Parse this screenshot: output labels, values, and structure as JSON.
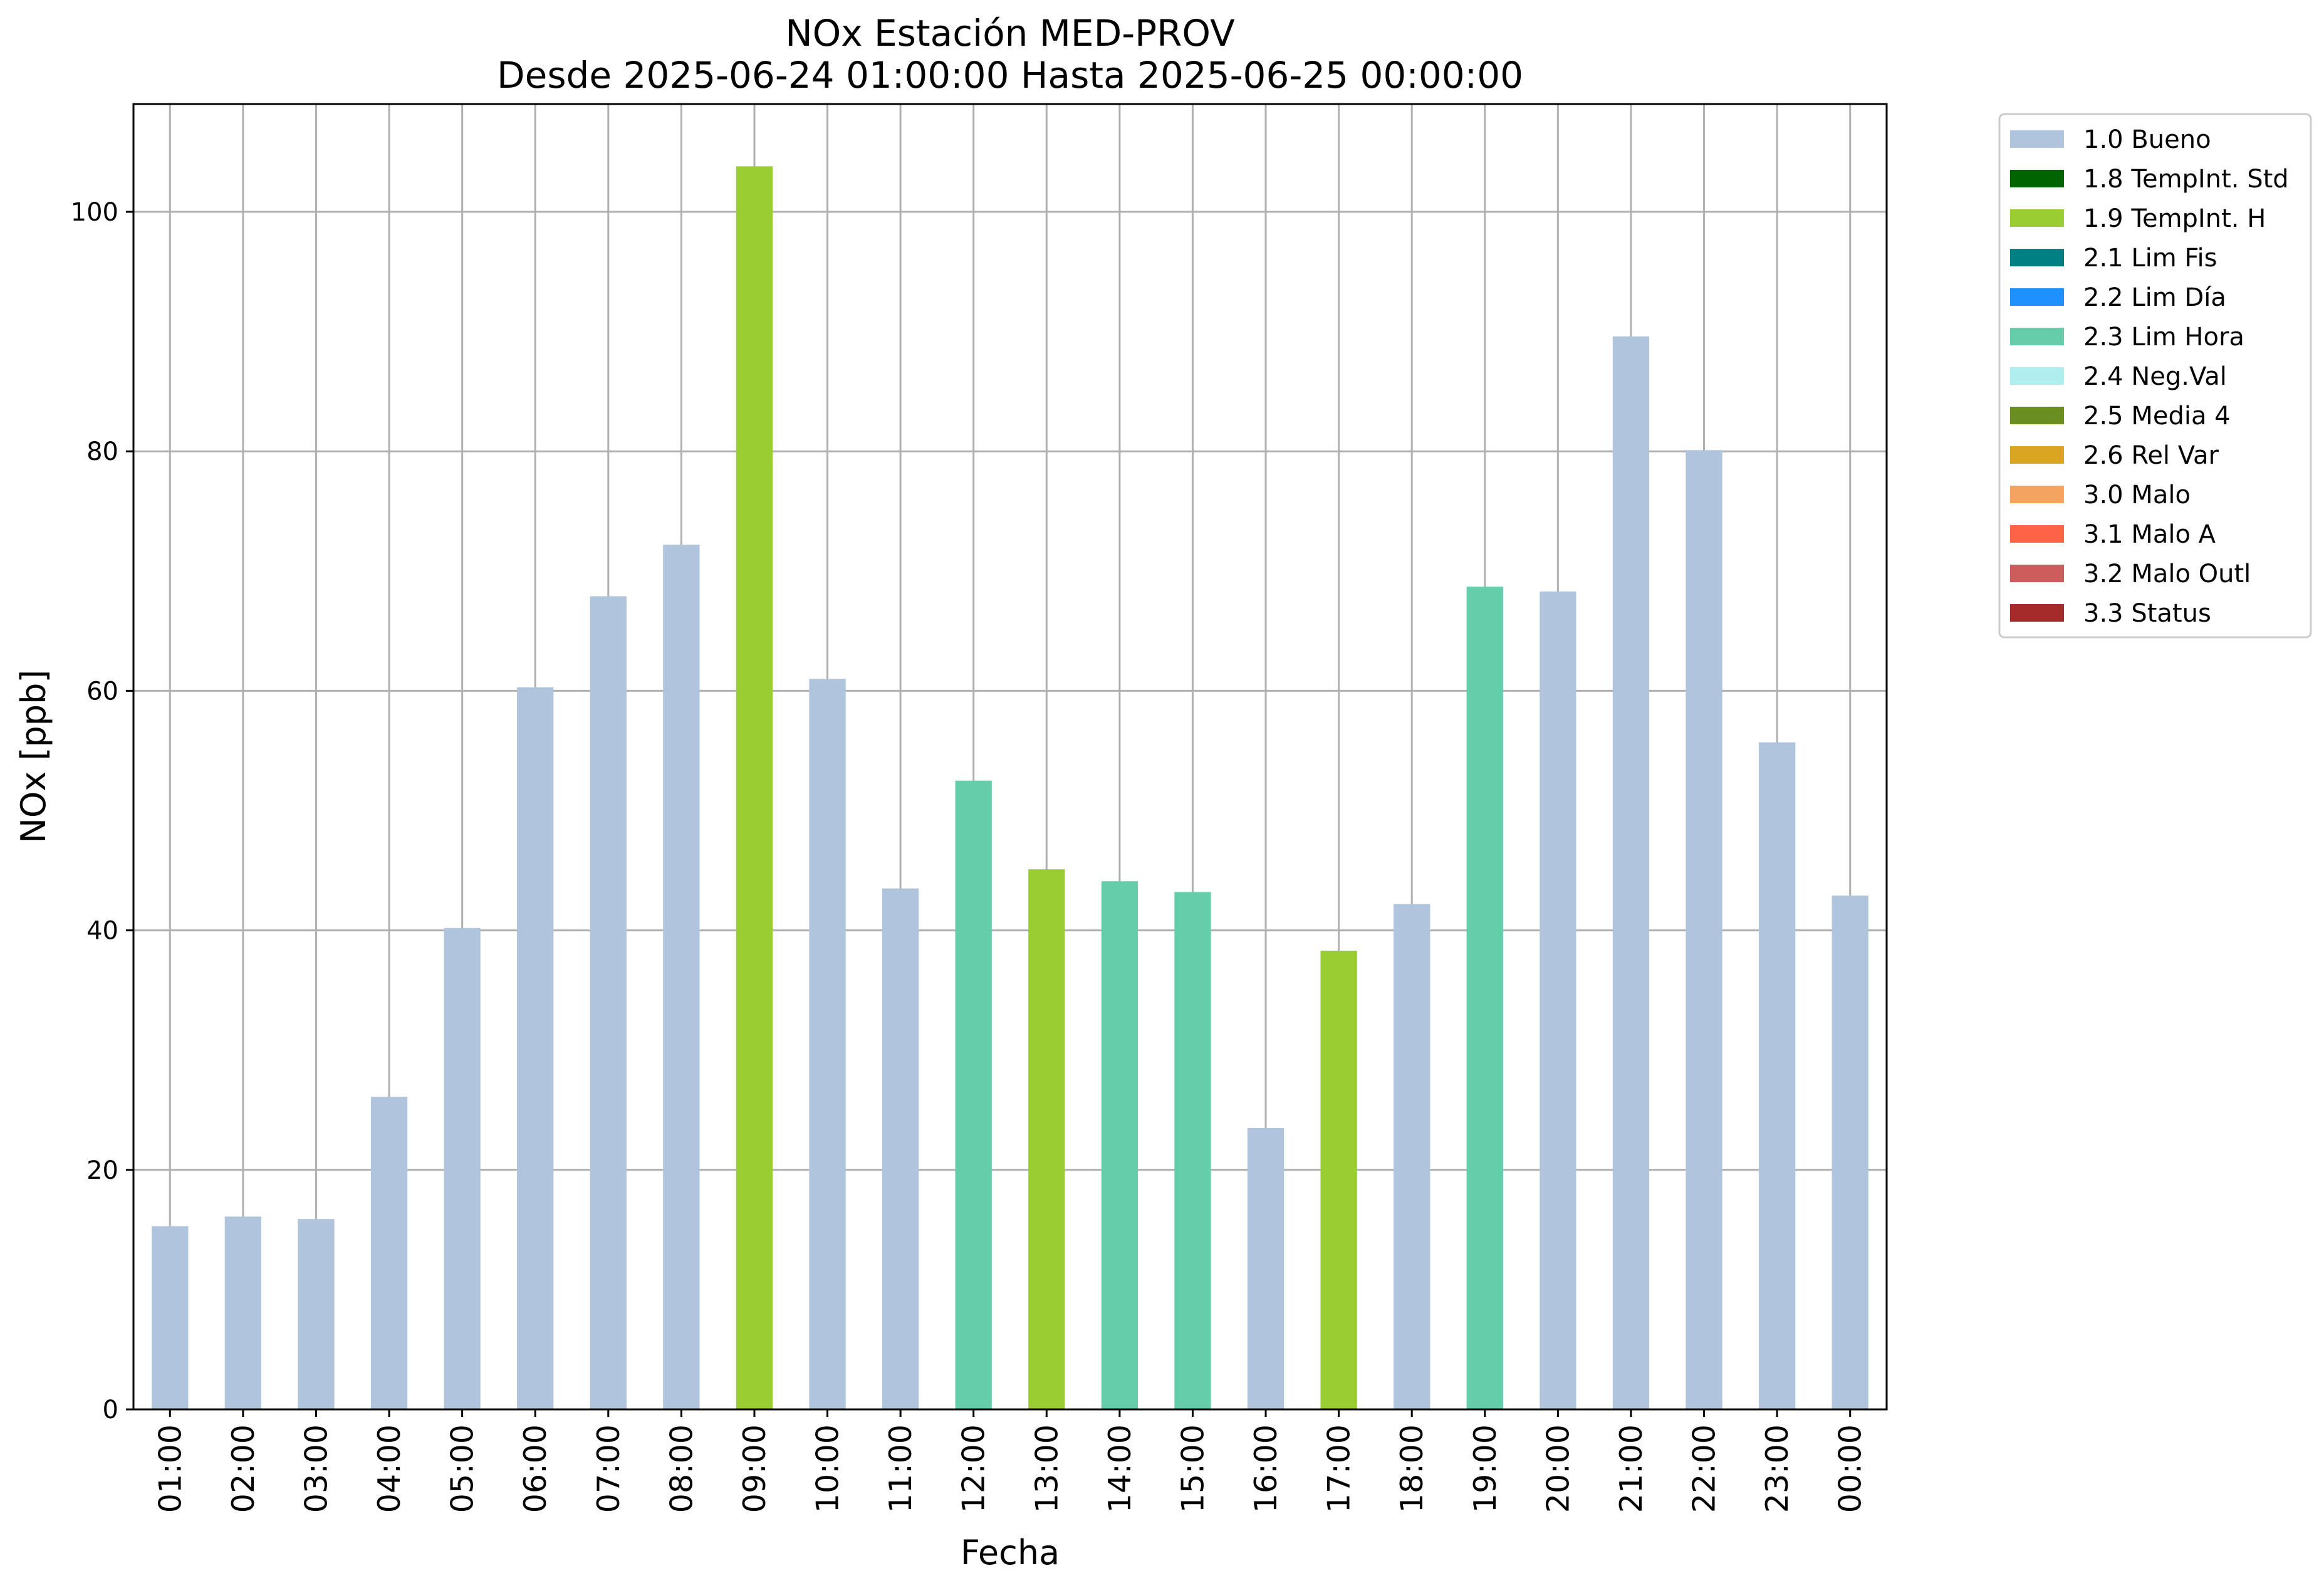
{
  "chart_data": {
    "type": "bar",
    "title": "NOx Estación MED-PROV",
    "subtitle": "Desde 2025-06-24 01:00:00 Hasta 2025-06-25 00:00:00",
    "xlabel": "Fecha",
    "ylabel": "NOx [ppb]",
    "ylim": [
      0,
      109
    ],
    "yticks": [
      0,
      20,
      40,
      60,
      80,
      100
    ],
    "grid": true,
    "legend_position": "outside-right-top",
    "categories": [
      "01:00",
      "02:00",
      "03:00",
      "04:00",
      "05:00",
      "06:00",
      "07:00",
      "08:00",
      "09:00",
      "10:00",
      "11:00",
      "12:00",
      "13:00",
      "14:00",
      "15:00",
      "16:00",
      "17:00",
      "18:00",
      "19:00",
      "20:00",
      "21:00",
      "22:00",
      "23:00",
      "00:00"
    ],
    "values": [
      15.3,
      16.1,
      15.9,
      26.1,
      40.2,
      60.3,
      67.9,
      72.2,
      103.8,
      61.0,
      43.5,
      52.5,
      45.1,
      44.1,
      43.2,
      23.5,
      38.3,
      42.2,
      68.7,
      68.3,
      89.6,
      80.1,
      55.7,
      42.9
    ],
    "flags": [
      "1.0 Bueno",
      "1.0 Bueno",
      "1.0 Bueno",
      "1.0 Bueno",
      "1.0 Bueno",
      "1.0 Bueno",
      "1.0 Bueno",
      "1.0 Bueno",
      "1.9 TempInt. H",
      "1.0 Bueno",
      "1.0 Bueno",
      "2.3 Lim Hora",
      "1.9 TempInt. H",
      "2.3 Lim Hora",
      "2.3 Lim Hora",
      "1.0 Bueno",
      "1.9 TempInt. H",
      "1.0 Bueno",
      "2.3 Lim Hora",
      "1.0 Bueno",
      "1.0 Bueno",
      "1.0 Bueno",
      "1.0 Bueno",
      "1.0 Bueno"
    ],
    "legend": [
      {
        "name": "1.0 Bueno",
        "color": "#b0c4de"
      },
      {
        "name": "1.8 TempInt. Std",
        "color": "#006400"
      },
      {
        "name": "1.9 TempInt. H",
        "color": "#9acd32"
      },
      {
        "name": "2.1 Lim Fis",
        "color": "#008080"
      },
      {
        "name": "2.2 Lim Día",
        "color": "#1e90ff"
      },
      {
        "name": "2.3 Lim Hora",
        "color": "#66cdaa"
      },
      {
        "name": "2.4 Neg.Val",
        "color": "#afeeee"
      },
      {
        "name": "2.5 Media 4",
        "color": "#6b8e23"
      },
      {
        "name": "2.6 Rel Var",
        "color": "#daa520"
      },
      {
        "name": "3.0 Malo",
        "color": "#f4a460"
      },
      {
        "name": "3.1 Malo A",
        "color": "#ff6347"
      },
      {
        "name": "3.2 Malo Outl",
        "color": "#cd5c5c"
      },
      {
        "name": "3.3 Status",
        "color": "#a52a2a"
      }
    ]
  }
}
